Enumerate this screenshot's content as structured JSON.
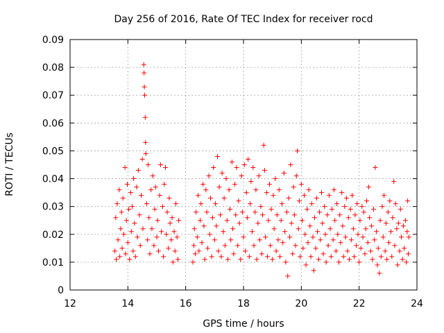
{
  "chart_data": {
    "type": "scatter",
    "title": "Day 256 of 2016, Rate Of TEC Index for receiver rocd",
    "xlabel": "GPS time / hours",
    "ylabel": "ROTI / TECUs",
    "xlim": [
      12,
      24
    ],
    "ylim": [
      0,
      0.09
    ],
    "xticks": [
      12,
      14,
      16,
      18,
      20,
      22,
      24
    ],
    "xtick_labels": [
      "12",
      "14",
      "16",
      "18",
      "20",
      "22",
      "24"
    ],
    "yticks": [
      0,
      0.01,
      0.02,
      0.03,
      0.04,
      0.05,
      0.06,
      0.07,
      0.08,
      0.09
    ],
    "ytick_labels": [
      "0",
      "0.01",
      "0.02",
      "0.03",
      "0.04",
      "0.05",
      "0.06",
      "0.07",
      "0.08",
      "0.09"
    ],
    "grid": true,
    "marker": "+",
    "color": "#ff0000",
    "series": [
      {
        "name": "rocd",
        "points": [
          [
            13.55,
            0.014
          ],
          [
            13.58,
            0.026
          ],
          [
            13.6,
            0.011
          ],
          [
            13.63,
            0.031
          ],
          [
            13.66,
            0.018
          ],
          [
            13.7,
            0.036
          ],
          [
            13.72,
            0.012
          ],
          [
            13.75,
            0.022
          ],
          [
            13.78,
            0.028
          ],
          [
            13.8,
            0.015
          ],
          [
            13.83,
            0.033
          ],
          [
            13.86,
            0.02
          ],
          [
            13.9,
            0.044
          ],
          [
            13.92,
            0.013
          ],
          [
            13.95,
            0.025
          ],
          [
            13.98,
            0.038
          ],
          [
            14.0,
            0.017
          ],
          [
            14.03,
            0.029
          ],
          [
            14.06,
            0.011
          ],
          [
            14.1,
            0.035
          ],
          [
            14.12,
            0.021
          ],
          [
            14.15,
            0.03
          ],
          [
            14.18,
            0.014
          ],
          [
            14.2,
            0.04
          ],
          [
            14.23,
            0.024
          ],
          [
            14.26,
            0.012
          ],
          [
            14.3,
            0.037
          ],
          [
            14.33,
            0.019
          ],
          [
            14.36,
            0.043
          ],
          [
            14.4,
            0.027
          ],
          [
            14.43,
            0.016
          ],
          [
            14.46,
            0.034
          ],
          [
            14.5,
            0.047
          ],
          [
            14.52,
            0.022
          ],
          [
            14.55,
            0.081
          ],
          [
            14.56,
            0.078
          ],
          [
            14.57,
            0.073
          ],
          [
            14.58,
            0.07
          ],
          [
            14.6,
            0.062
          ],
          [
            14.61,
            0.053
          ],
          [
            14.62,
            0.049
          ],
          [
            14.65,
            0.031
          ],
          [
            14.68,
            0.018
          ],
          [
            14.7,
            0.045
          ],
          [
            14.73,
            0.026
          ],
          [
            14.76,
            0.013
          ],
          [
            14.8,
            0.036
          ],
          [
            14.83,
            0.022
          ],
          [
            14.86,
            0.041
          ],
          [
            14.9,
            0.016
          ],
          [
            14.93,
            0.029
          ],
          [
            14.96,
            0.037
          ],
          [
            15.0,
            0.019
          ],
          [
            15.03,
            0.025
          ],
          [
            15.06,
            0.014
          ],
          [
            15.1,
            0.034
          ],
          [
            15.13,
            0.045
          ],
          [
            15.16,
            0.021
          ],
          [
            15.2,
            0.03
          ],
          [
            15.23,
            0.012
          ],
          [
            15.26,
            0.038
          ],
          [
            15.3,
            0.044
          ],
          [
            15.33,
            0.02
          ],
          [
            15.36,
            0.028
          ],
          [
            15.4,
            0.015
          ],
          [
            15.43,
            0.033
          ],
          [
            15.46,
            0.024
          ],
          [
            15.5,
            0.018
          ],
          [
            15.53,
            0.026
          ],
          [
            15.56,
            0.01
          ],
          [
            15.6,
            0.021
          ],
          [
            15.63,
            0.014
          ],
          [
            15.66,
            0.031
          ],
          [
            15.7,
            0.019
          ],
          [
            15.73,
            0.011
          ],
          [
            15.76,
            0.025
          ],
          [
            16.25,
            0.01
          ],
          [
            16.28,
            0.016
          ],
          [
            16.3,
            0.022
          ],
          [
            16.33,
            0.013
          ],
          [
            16.36,
            0.028
          ],
          [
            16.4,
            0.019
          ],
          [
            16.43,
            0.034
          ],
          [
            16.46,
            0.014
          ],
          [
            16.5,
            0.025
          ],
          [
            16.53,
            0.031
          ],
          [
            16.56,
            0.017
          ],
          [
            16.6,
            0.038
          ],
          [
            16.63,
            0.023
          ],
          [
            16.66,
            0.011
          ],
          [
            16.7,
            0.036
          ],
          [
            16.73,
            0.028
          ],
          [
            16.76,
            0.015
          ],
          [
            16.8,
            0.041
          ],
          [
            16.83,
            0.02
          ],
          [
            16.86,
            0.033
          ],
          [
            16.9,
            0.012
          ],
          [
            16.93,
            0.026
          ],
          [
            16.96,
            0.044
          ],
          [
            17.0,
            0.018
          ],
          [
            17.03,
            0.031
          ],
          [
            17.06,
            0.023
          ],
          [
            17.1,
            0.048
          ],
          [
            17.13,
            0.014
          ],
          [
            17.16,
            0.037
          ],
          [
            17.2,
            0.027
          ],
          [
            17.23,
            0.012
          ],
          [
            17.26,
            0.042
          ],
          [
            17.3,
            0.021
          ],
          [
            17.33,
            0.033
          ],
          [
            17.36,
            0.016
          ],
          [
            17.4,
            0.04
          ],
          [
            17.43,
            0.025
          ],
          [
            17.46,
            0.011
          ],
          [
            17.5,
            0.036
          ],
          [
            17.53,
            0.029
          ],
          [
            17.56,
            0.018
          ],
          [
            17.6,
            0.046
          ],
          [
            17.63,
            0.022
          ],
          [
            17.66,
            0.013
          ],
          [
            17.7,
            0.038
          ],
          [
            17.73,
            0.027
          ],
          [
            17.76,
            0.044
          ],
          [
            17.8,
            0.016
          ],
          [
            17.83,
            0.032
          ],
          [
            17.86,
            0.024
          ],
          [
            17.9,
            0.011
          ],
          [
            17.93,
            0.041
          ],
          [
            17.96,
            0.028
          ],
          [
            18.0,
            0.019
          ],
          [
            18.03,
            0.045
          ],
          [
            18.06,
            0.014
          ],
          [
            18.1,
            0.035
          ],
          [
            18.13,
            0.026
          ],
          [
            18.16,
            0.047
          ],
          [
            18.2,
            0.012
          ],
          [
            18.23,
            0.031
          ],
          [
            18.26,
            0.039
          ],
          [
            18.3,
            0.021
          ],
          [
            18.33,
            0.044
          ],
          [
            18.36,
            0.016
          ],
          [
            18.4,
            0.028
          ],
          [
            18.43,
            0.036
          ],
          [
            18.46,
            0.011
          ],
          [
            18.5,
            0.024
          ],
          [
            18.53,
            0.041
          ],
          [
            18.56,
            0.018
          ],
          [
            18.6,
            0.03
          ],
          [
            18.63,
            0.013
          ],
          [
            18.66,
            0.027
          ],
          [
            18.7,
            0.052
          ],
          [
            18.73,
            0.043
          ],
          [
            18.76,
            0.019
          ],
          [
            18.8,
            0.035
          ],
          [
            18.83,
            0.012
          ],
          [
            18.86,
            0.025
          ],
          [
            18.9,
            0.038
          ],
          [
            18.93,
            0.016
          ],
          [
            18.96,
            0.029
          ],
          [
            19.0,
            0.011
          ],
          [
            19.03,
            0.034
          ],
          [
            19.06,
            0.022
          ],
          [
            19.1,
            0.04
          ],
          [
            19.13,
            0.014
          ],
          [
            19.16,
            0.027
          ],
          [
            19.2,
            0.018
          ],
          [
            19.23,
            0.036
          ],
          [
            19.26,
            0.012
          ],
          [
            19.3,
            0.025
          ],
          [
            19.33,
            0.031
          ],
          [
            19.36,
            0.017
          ],
          [
            19.4,
            0.042
          ],
          [
            19.43,
            0.021
          ],
          [
            19.46,
            0.01
          ],
          [
            19.5,
            0.028
          ],
          [
            19.53,
            0.005
          ],
          [
            19.56,
            0.033
          ],
          [
            19.6,
            0.019
          ],
          [
            19.63,
            0.045
          ],
          [
            19.66,
            0.024
          ],
          [
            19.7,
            0.013
          ],
          [
            19.73,
            0.037
          ],
          [
            19.76,
            0.027
          ],
          [
            19.8,
            0.016
          ],
          [
            19.83,
            0.041
          ],
          [
            19.86,
            0.05
          ],
          [
            19.9,
            0.022
          ],
          [
            19.93,
            0.032
          ],
          [
            19.96,
            0.012
          ],
          [
            20.0,
            0.038
          ],
          [
            20.03,
            0.025
          ],
          [
            20.06,
            0.015
          ],
          [
            20.1,
            0.034
          ],
          [
            20.13,
            0.02
          ],
          [
            20.16,
            0.009
          ],
          [
            20.2,
            0.029
          ],
          [
            20.23,
            0.017
          ],
          [
            20.26,
            0.036
          ],
          [
            20.3,
            0.023
          ],
          [
            20.33,
            0.012
          ],
          [
            20.36,
            0.031
          ],
          [
            20.4,
            0.019
          ],
          [
            20.43,
            0.007
          ],
          [
            20.46,
            0.026
          ],
          [
            20.5,
            0.015
          ],
          [
            20.53,
            0.033
          ],
          [
            20.56,
            0.021
          ],
          [
            20.6,
            0.011
          ],
          [
            20.63,
            0.028
          ],
          [
            20.66,
            0.018
          ],
          [
            20.7,
            0.035
          ],
          [
            20.73,
            0.024
          ],
          [
            20.76,
            0.013
          ],
          [
            20.8,
            0.03
          ],
          [
            20.83,
            0.02
          ],
          [
            20.86,
            0.01
          ],
          [
            20.9,
            0.027
          ],
          [
            20.93,
            0.016
          ],
          [
            20.96,
            0.034
          ],
          [
            21.0,
            0.022
          ],
          [
            21.03,
            0.012
          ],
          [
            21.06,
            0.029
          ],
          [
            21.1,
            0.018
          ],
          [
            21.13,
            0.036
          ],
          [
            21.16,
            0.025
          ],
          [
            21.2,
            0.014
          ],
          [
            21.23,
            0.031
          ],
          [
            21.26,
            0.02
          ],
          [
            21.3,
            0.01
          ],
          [
            21.33,
            0.027
          ],
          [
            21.36,
            0.017
          ],
          [
            21.4,
            0.035
          ],
          [
            21.43,
            0.023
          ],
          [
            21.46,
            0.012
          ],
          [
            21.5,
            0.03
          ],
          [
            21.53,
            0.019
          ],
          [
            21.56,
            0.033
          ],
          [
            21.6,
            0.014
          ],
          [
            21.63,
            0.026
          ],
          [
            21.66,
            0.011
          ],
          [
            21.7,
            0.029
          ],
          [
            21.73,
            0.018
          ],
          [
            21.76,
            0.034
          ],
          [
            21.8,
            0.022
          ],
          [
            21.83,
            0.012
          ],
          [
            21.86,
            0.027
          ],
          [
            21.9,
            0.016
          ],
          [
            21.93,
            0.031
          ],
          [
            21.96,
            0.02
          ],
          [
            22.0,
            0.01
          ],
          [
            22.03,
            0.025
          ],
          [
            22.06,
            0.015
          ],
          [
            22.1,
            0.03
          ],
          [
            22.13,
            0.019
          ],
          [
            22.16,
            0.028
          ],
          [
            22.2,
            0.013
          ],
          [
            22.23,
            0.022
          ],
          [
            22.26,
            0.032
          ],
          [
            22.3,
            0.017
          ],
          [
            22.33,
            0.037
          ],
          [
            22.36,
            0.026
          ],
          [
            22.4,
            0.014
          ],
          [
            22.43,
            0.023
          ],
          [
            22.46,
            0.011
          ],
          [
            22.5,
            0.029
          ],
          [
            22.53,
            0.018
          ],
          [
            22.56,
            0.044
          ],
          [
            22.6,
            0.021
          ],
          [
            22.63,
            0.009
          ],
          [
            22.66,
            0.015
          ],
          [
            22.7,
            0.006
          ],
          [
            22.73,
            0.025
          ],
          [
            22.76,
            0.012
          ],
          [
            22.8,
            0.03
          ],
          [
            22.83,
            0.019
          ],
          [
            22.86,
            0.034
          ],
          [
            22.9,
            0.014
          ],
          [
            22.93,
            0.024
          ],
          [
            22.96,
            0.011
          ],
          [
            23.0,
            0.028
          ],
          [
            23.03,
            0.017
          ],
          [
            23.06,
            0.032
          ],
          [
            23.1,
            0.021
          ],
          [
            23.13,
            0.012
          ],
          [
            23.16,
            0.026
          ],
          [
            23.2,
            0.039
          ],
          [
            23.23,
            0.016
          ],
          [
            23.26,
            0.031
          ],
          [
            23.3,
            0.022
          ],
          [
            23.33,
            0.009
          ],
          [
            23.36,
            0.024
          ],
          [
            23.4,
            0.014
          ],
          [
            23.43,
            0.029
          ],
          [
            23.46,
            0.019
          ],
          [
            23.5,
            0.011
          ],
          [
            23.53,
            0.023
          ],
          [
            23.56,
            0.015
          ],
          [
            23.6,
            0.025
          ],
          [
            23.63,
            0.01
          ],
          [
            23.66,
            0.021
          ],
          [
            23.68,
            0.032
          ],
          [
            23.7,
            0.013
          ],
          [
            23.72,
            0.019
          ]
        ]
      }
    ]
  }
}
